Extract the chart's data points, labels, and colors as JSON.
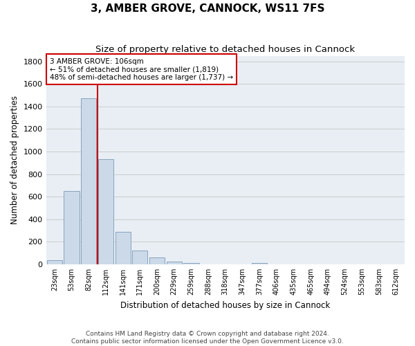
{
  "title": "3, AMBER GROVE, CANNOCK, WS11 7FS",
  "subtitle": "Size of property relative to detached houses in Cannock",
  "xlabel": "Distribution of detached houses by size in Cannock",
  "ylabel": "Number of detached properties",
  "categories": [
    "23sqm",
    "53sqm",
    "82sqm",
    "112sqm",
    "141sqm",
    "171sqm",
    "200sqm",
    "229sqm",
    "259sqm",
    "288sqm",
    "318sqm",
    "347sqm",
    "377sqm",
    "406sqm",
    "435sqm",
    "465sqm",
    "494sqm",
    "524sqm",
    "553sqm",
    "583sqm",
    "612sqm"
  ],
  "values": [
    38,
    650,
    1470,
    935,
    290,
    125,
    62,
    22,
    13,
    0,
    0,
    0,
    13,
    0,
    0,
    0,
    0,
    0,
    0,
    0,
    0
  ],
  "bar_color": "#ccd9e8",
  "bar_edge_color": "#7a9ab8",
  "bar_edge_width": 0.6,
  "vline_index": 2.5,
  "vline_color": "#cc0000",
  "annotation_line1": "3 AMBER GROVE: 106sqm",
  "annotation_line2": "← 51% of detached houses are smaller (1,819)",
  "annotation_line3": "48% of semi-detached houses are larger (1,737) →",
  "annotation_box_facecolor": "#ffffff",
  "annotation_box_edgecolor": "#cc0000",
  "ylim": [
    0,
    1850
  ],
  "yticks": [
    0,
    200,
    400,
    600,
    800,
    1000,
    1200,
    1400,
    1600,
    1800
  ],
  "grid_color": "#cccccc",
  "bg_color": "#e8eef4",
  "footer_line1": "Contains HM Land Registry data © Crown copyright and database right 2024.",
  "footer_line2": "Contains public sector information licensed under the Open Government Licence v3.0.",
  "title_fontsize": 11,
  "subtitle_fontsize": 9.5,
  "ylabel_fontsize": 8.5,
  "xlabel_fontsize": 8.5,
  "tick_fontsize": 7,
  "annotation_fontsize": 7.5,
  "footer_fontsize": 6.5
}
